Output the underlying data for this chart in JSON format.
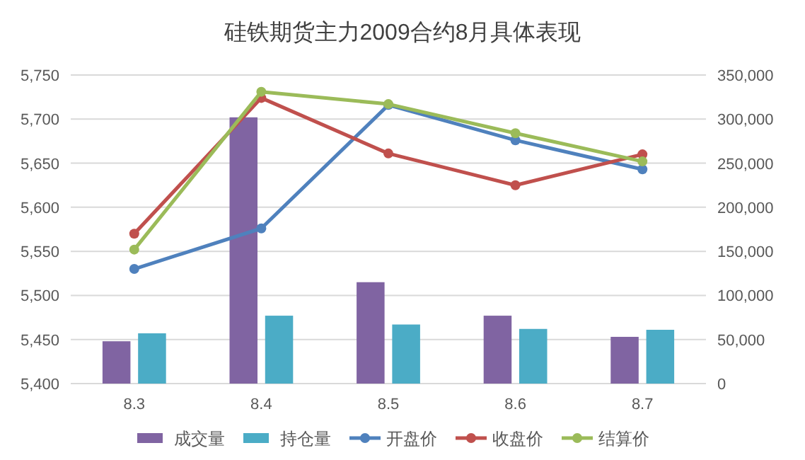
{
  "chart_data": {
    "type": "bar",
    "title": "硅铁期货主力2009合约8月具体表现",
    "categories": [
      "8.3",
      "8.4",
      "8.5",
      "8.6",
      "8.7"
    ],
    "series": [
      {
        "name": "成交量",
        "axis": "y2",
        "color": "#8064a2",
        "values": [
          48000,
          302000,
          115000,
          77000,
          53000
        ]
      },
      {
        "name": "持仓量",
        "axis": "y2",
        "color": "#4bacc6",
        "values": [
          57000,
          77000,
          67000,
          62000,
          61000
        ]
      },
      {
        "name": "开盘价",
        "type": "line",
        "color": "#4f81bd",
        "values": [
          5530,
          5576,
          5716,
          5676,
          5643
        ]
      },
      {
        "name": "收盘价",
        "type": "line",
        "color": "#c0504d",
        "values": [
          5570,
          5724,
          5661,
          5625,
          5660
        ]
      },
      {
        "name": "结算价",
        "type": "line",
        "color": "#9bbb59",
        "values": [
          5552,
          5731,
          5717,
          5684,
          5652
        ]
      }
    ],
    "ylim": [
      5400,
      5750
    ],
    "yticks": [
      {
        "value": 5400,
        "label": "5,400"
      },
      {
        "value": 5450,
        "label": "5,450"
      },
      {
        "value": 5500,
        "label": "5,500"
      },
      {
        "value": 5550,
        "label": "5,550"
      },
      {
        "value": 5600,
        "label": "5,600"
      },
      {
        "value": 5650,
        "label": "5,650"
      },
      {
        "value": 5700,
        "label": "5,700"
      },
      {
        "value": 5750,
        "label": "5,750"
      }
    ],
    "y2lim": [
      0,
      350000
    ],
    "y2ticks": [
      0,
      {
        "value": 50000,
        "label": "50,000"
      },
      {
        "value": 100000,
        "label": "100,000"
      },
      {
        "value": 150000,
        "label": "150,000"
      },
      {
        "value": 200000,
        "label": "200,000"
      },
      {
        "value": 250000,
        "label": "250,000"
      },
      {
        "value": 300000,
        "label": "300,000"
      },
      {
        "value": 350000,
        "label": "350,000"
      }
    ],
    "grid": "y",
    "legend": "bottom",
    "marker": "circle",
    "line_style": "solid"
  }
}
